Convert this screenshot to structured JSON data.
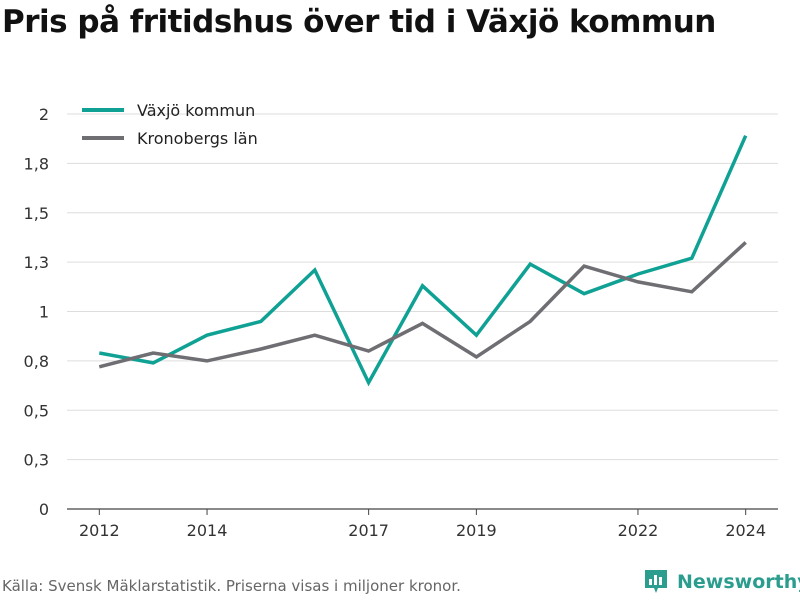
{
  "header": {
    "title": "Pris på fritidshus över tid i Växjö kommun"
  },
  "footer": {
    "source": "Källa: Svensk Mäklarstatistik. Priserna visas i miljoner kronor.",
    "brand": "Newsworthy"
  },
  "colors": {
    "accent": "#10a195",
    "secondary": "#6e6e73",
    "grid": "#dddddd"
  },
  "chart_data": {
    "type": "line",
    "title": "Pris på fritidshus över tid i Växjö kommun",
    "xlabel": "",
    "ylabel": "",
    "x": [
      2012,
      2013,
      2014,
      2015,
      2016,
      2017,
      2018,
      2019,
      2020,
      2021,
      2022,
      2023,
      2024
    ],
    "x_ticks": [
      "2012",
      "2014",
      "2017",
      "2019",
      "2022",
      "2024"
    ],
    "xlim": [
      2011.4,
      2024.6
    ],
    "y_ticks": [
      "0",
      "0,3",
      "0,5",
      "0,8",
      "1",
      "1,3",
      "1,5",
      "1,8",
      "2"
    ],
    "ylim": [
      0,
      2
    ],
    "grid": true,
    "legend_position": "top-left",
    "series": [
      {
        "name": "Växjö kommun",
        "color": "#10a195",
        "values": [
          0.79,
          0.74,
          0.88,
          0.95,
          1.21,
          0.64,
          1.13,
          0.88,
          1.24,
          1.09,
          1.19,
          1.27,
          1.89
        ]
      },
      {
        "name": "Kronobergs län",
        "color": "#6e6e73",
        "values": [
          0.72,
          0.79,
          0.75,
          0.81,
          0.88,
          0.8,
          0.94,
          0.77,
          0.95,
          1.23,
          1.15,
          1.1,
          1.35
        ]
      }
    ]
  }
}
